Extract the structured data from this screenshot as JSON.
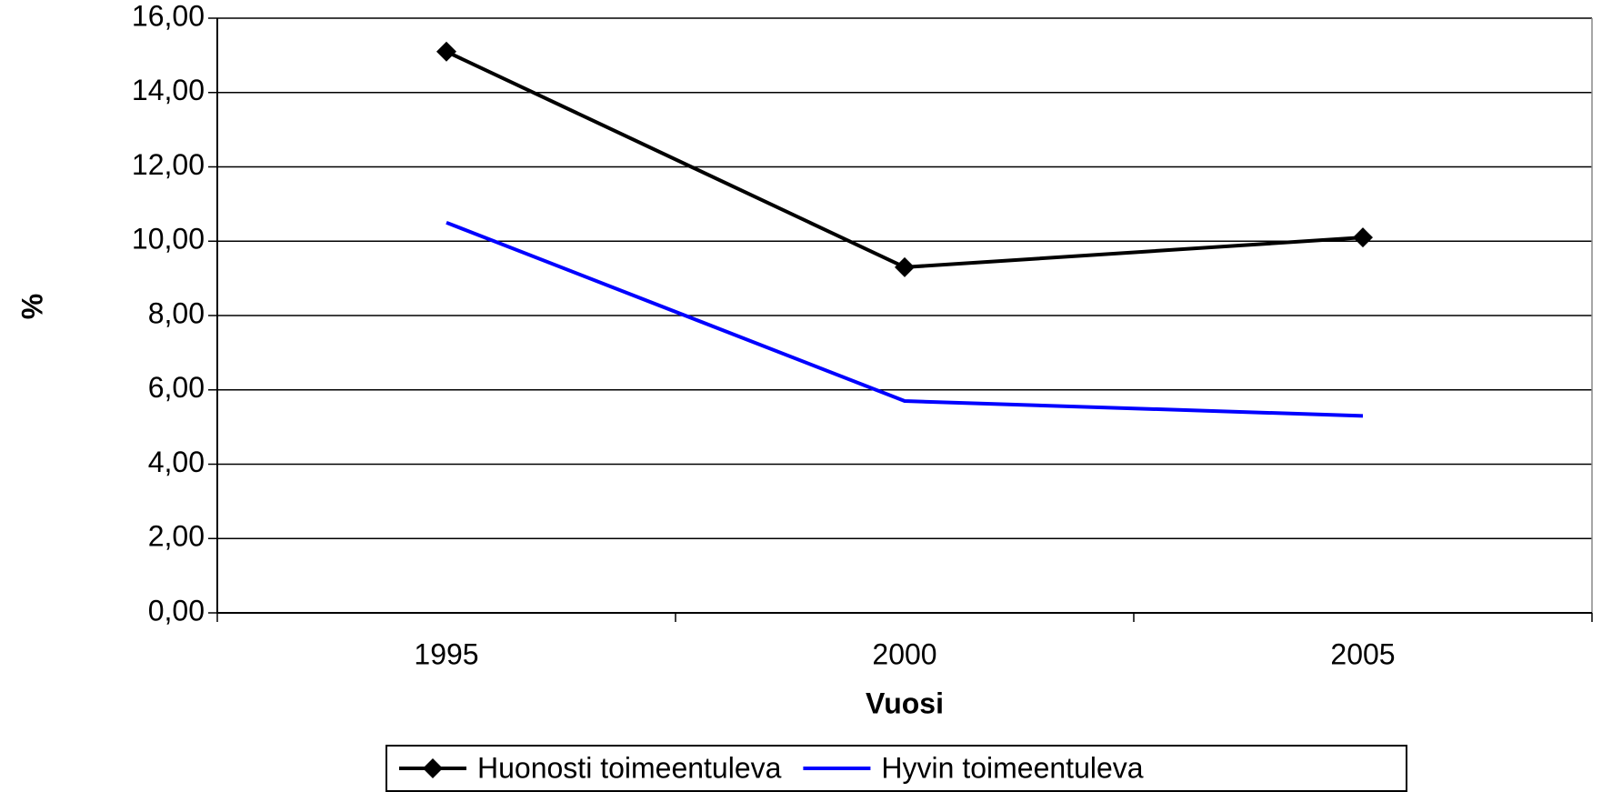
{
  "chart_data": {
    "type": "line",
    "ylabel": "%",
    "xlabel": "Vuosi",
    "categories": [
      "1995",
      "2000",
      "2005"
    ],
    "series": [
      {
        "name": "Huonosti toimeentuleva",
        "color": "#000000",
        "marker": "diamond",
        "values": [
          15.1,
          9.3,
          10.1
        ]
      },
      {
        "name": "Hyvin toimeentuleva",
        "color": "#0000ff",
        "marker": "none",
        "values": [
          10.5,
          5.7,
          5.3
        ]
      }
    ],
    "ylim": [
      0,
      16
    ],
    "yticks": [
      {
        "value": 0,
        "label": "0,00"
      },
      {
        "value": 2,
        "label": "2,00"
      },
      {
        "value": 4,
        "label": "4,00"
      },
      {
        "value": 6,
        "label": "6,00"
      },
      {
        "value": 8,
        "label": "8,00"
      },
      {
        "value": 10,
        "label": "10,00"
      },
      {
        "value": 12,
        "label": "12,00"
      },
      {
        "value": 14,
        "label": "14,00"
      },
      {
        "value": 16,
        "label": "16,00"
      }
    ],
    "grid": true,
    "legend": "bottom"
  }
}
